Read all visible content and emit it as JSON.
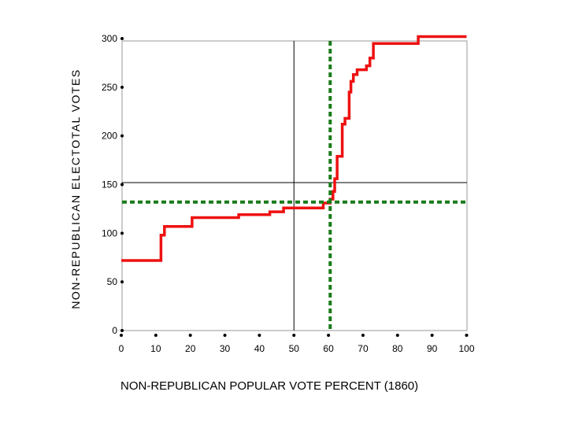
{
  "chart_data": {
    "type": "line",
    "xlabel": "NON-REPUBLICAN POPULAR VOTE PERCENT (1860)",
    "ylabel": "NON-REPUBLICAN ELECTOTAL VOTES",
    "xlim": [
      0,
      100
    ],
    "ylim": [
      0,
      303
    ],
    "x_ticks": [
      "0",
      "10",
      "20",
      "30",
      "40",
      "50",
      "60",
      "70",
      "80",
      "90",
      "100"
    ],
    "y_ticks": [
      "0",
      "50",
      "100",
      "150",
      "200",
      "250",
      "300"
    ],
    "grid": false,
    "series": [
      {
        "style": "step",
        "color": "#ee1111",
        "points": [
          [
            0,
            72
          ],
          [
            11.5,
            72
          ],
          [
            11.5,
            98
          ],
          [
            12.5,
            98
          ],
          [
            12.5,
            107
          ],
          [
            20.5,
            107
          ],
          [
            20.5,
            116
          ],
          [
            34,
            116
          ],
          [
            34,
            119
          ],
          [
            43,
            119
          ],
          [
            43,
            122
          ],
          [
            47,
            122
          ],
          [
            47,
            126
          ],
          [
            58.5,
            126
          ],
          [
            58.5,
            131
          ],
          [
            60.5,
            131
          ],
          [
            60.5,
            135
          ],
          [
            61.3,
            135
          ],
          [
            61.3,
            143
          ],
          [
            61.8,
            143
          ],
          [
            61.8,
            156
          ],
          [
            62.5,
            156
          ],
          [
            62.5,
            179
          ],
          [
            64,
            179
          ],
          [
            64,
            212
          ],
          [
            64.8,
            212
          ],
          [
            64.8,
            218
          ],
          [
            66,
            218
          ],
          [
            66,
            245
          ],
          [
            66.5,
            245
          ],
          [
            66.5,
            256
          ],
          [
            67.2,
            256
          ],
          [
            67.2,
            263
          ],
          [
            68.3,
            263
          ],
          [
            68.3,
            268
          ],
          [
            71,
            268
          ],
          [
            71,
            272
          ],
          [
            72,
            272
          ],
          [
            72,
            280
          ],
          [
            73,
            280
          ],
          [
            73,
            295
          ],
          [
            86,
            295
          ],
          [
            86,
            302
          ],
          [
            100,
            302
          ]
        ]
      }
    ],
    "reference_lines": {
      "solid_vertical_x": 50,
      "solid_horizontal_y": 152,
      "dotted_vertical_x": 60.5,
      "dotted_horizontal_y": 132,
      "solid_color": "#000000",
      "dotted_color": "#1a7a1a"
    }
  }
}
